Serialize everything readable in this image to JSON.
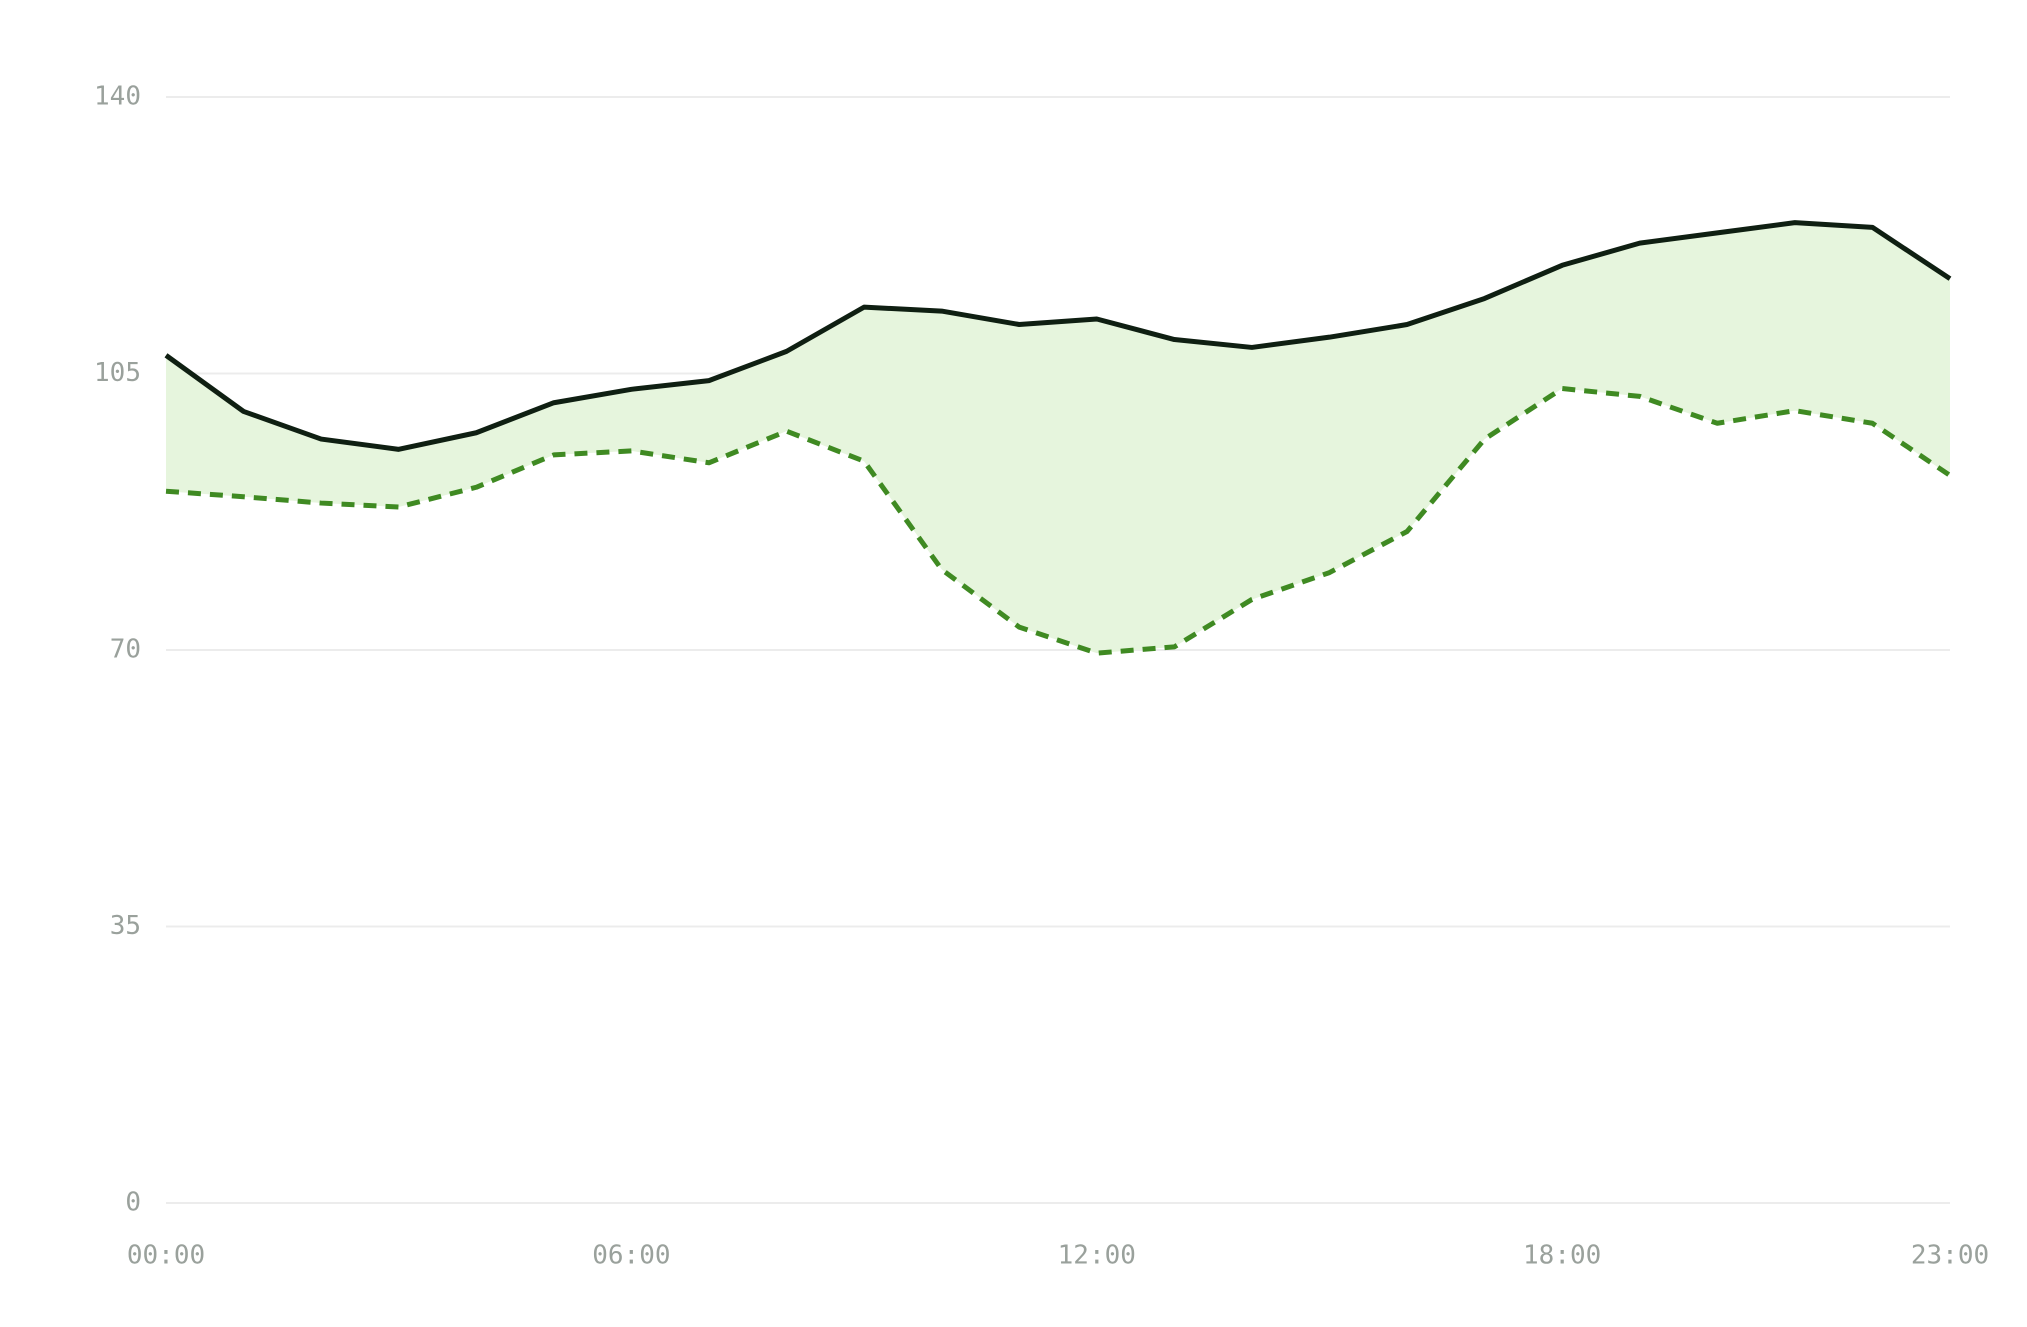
{
  "chart_data": {
    "type": "line",
    "categories": [
      "00:00",
      null,
      null,
      null,
      null,
      null,
      "06:00",
      null,
      null,
      null,
      null,
      null,
      "12:00",
      null,
      null,
      null,
      null,
      null,
      "18:00",
      null,
      null,
      null,
      null,
      "23:00"
    ],
    "series": [
      {
        "color": "#0f1f12",
        "dashed": false,
        "values": [
          107.3,
          100.2,
          96.7,
          95.4,
          97.5,
          101.3,
          103.0,
          104.1,
          107.8,
          113.4,
          112.9,
          111.2,
          111.9,
          109.3,
          108.3,
          109.6,
          111.2,
          114.5,
          118.7,
          121.5,
          122.8,
          124.1,
          123.5,
          117.0
        ]
      },
      {
        "color": "#3f8a22",
        "dashed": true,
        "values": [
          90.1,
          89.4,
          88.6,
          88.1,
          90.6,
          94.7,
          95.2,
          93.7,
          97.7,
          93.9,
          80.2,
          72.9,
          69.6,
          70.4,
          76.4,
          79.8,
          85.0,
          96.7,
          103.1,
          102.1,
          98.7,
          100.3,
          98.7,
          92.1
        ]
      }
    ],
    "band_fill": "#e6f5dd",
    "ylim": [
      0,
      140
    ],
    "yticks": [
      0,
      35,
      70,
      105,
      140
    ],
    "grid": true
  }
}
